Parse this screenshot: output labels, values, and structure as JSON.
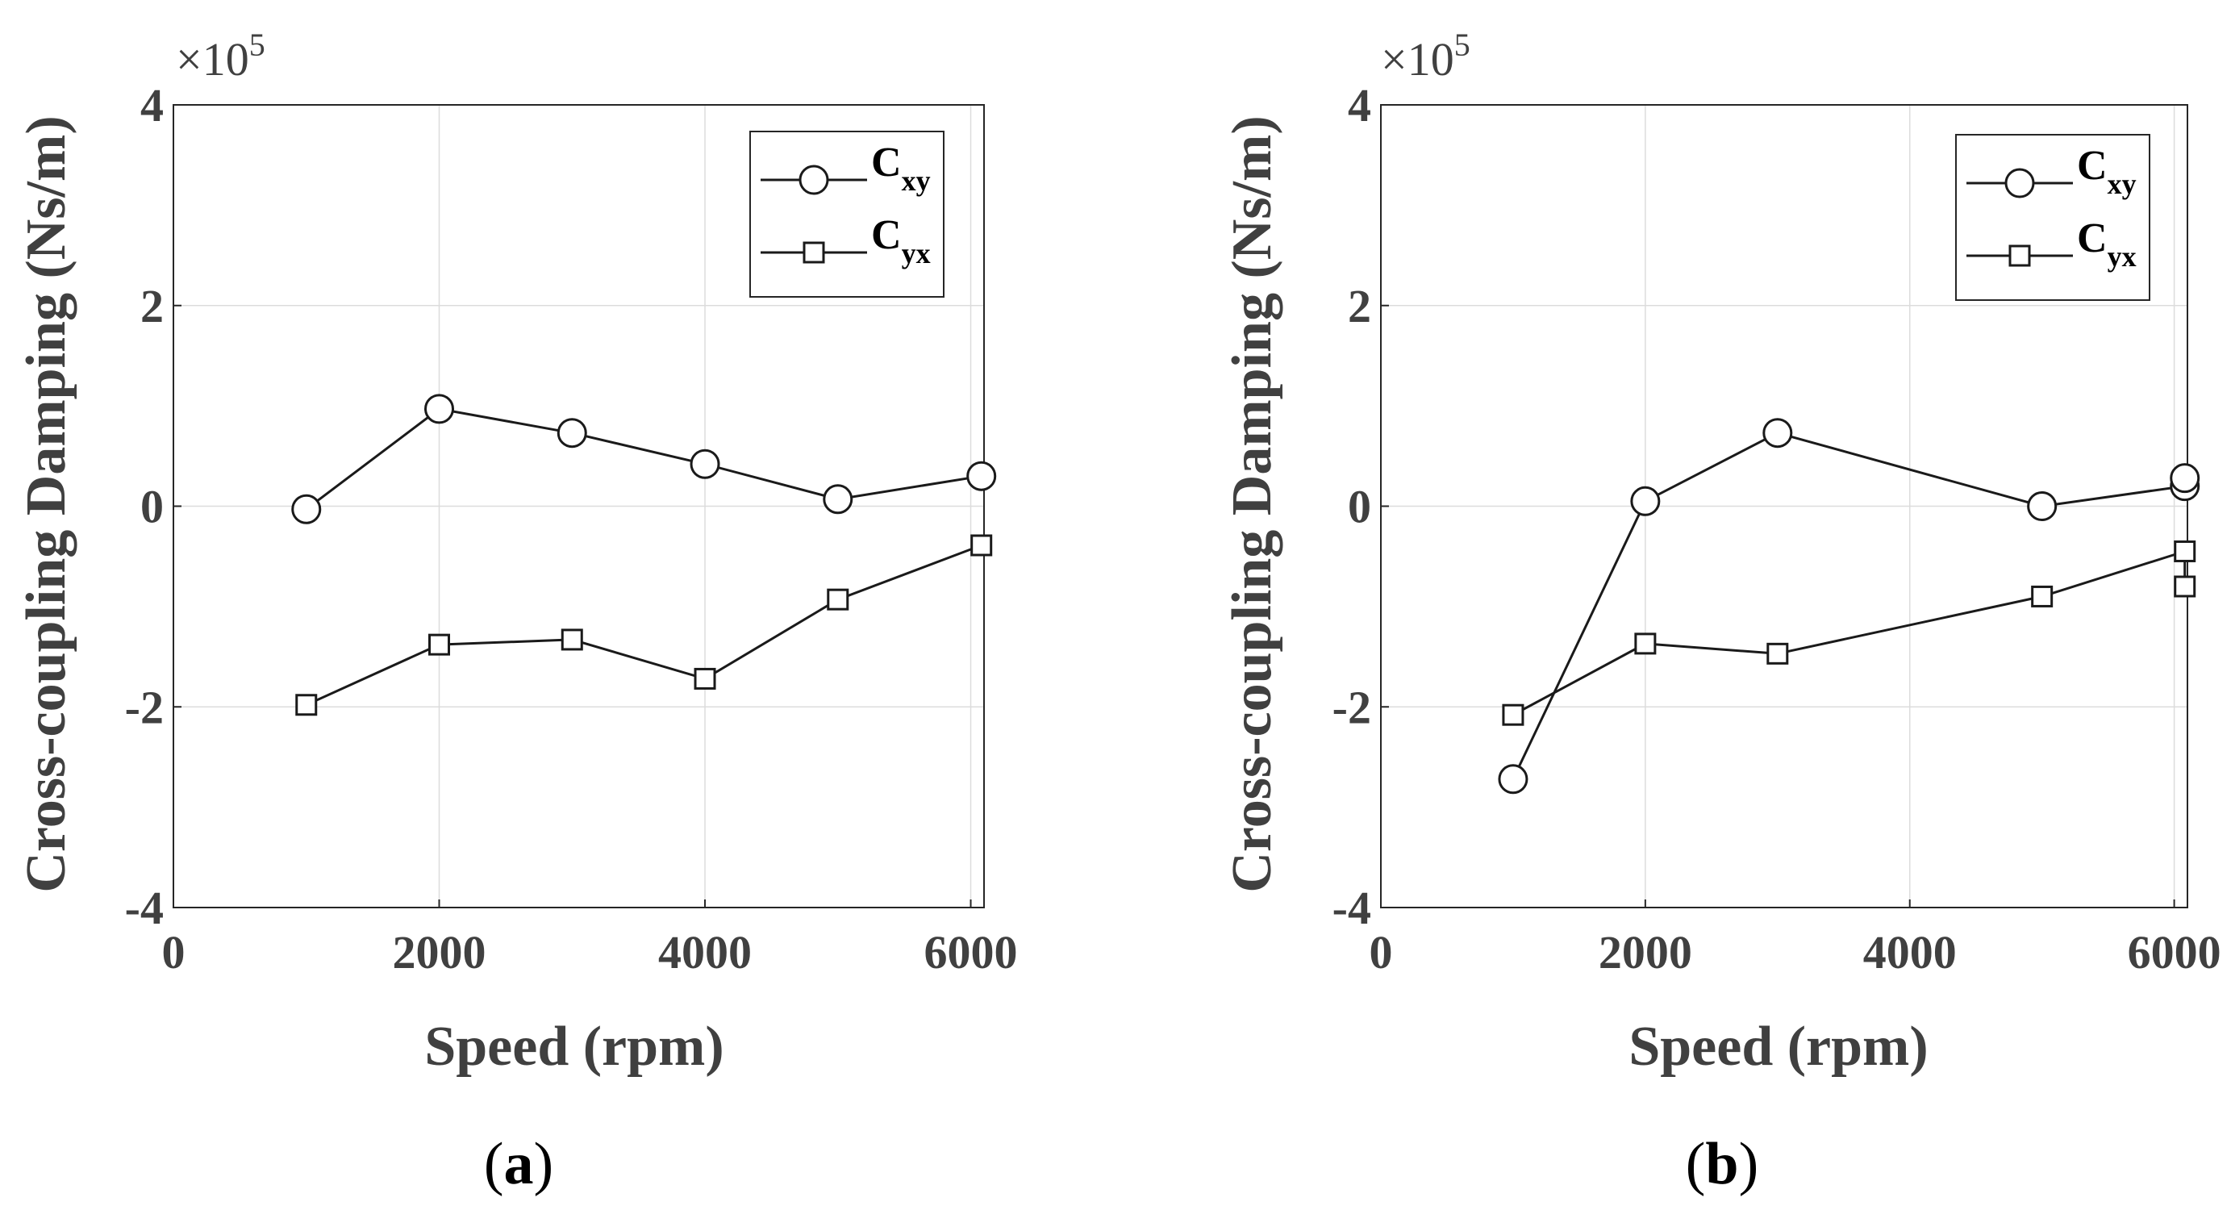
{
  "colors": {
    "line": "#1a1a1a",
    "axis": "#262626",
    "grid": "#dcdcdc",
    "text": "#404040"
  },
  "chart_data": [
    {
      "type": "line",
      "panel_label": "a",
      "xlabel": "Speed (rpm)",
      "ylabel": "Cross-coupling Damping (Ns/m)",
      "y_multiplier": {
        "base": "×10",
        "exponent": "5"
      },
      "xlim": [
        0,
        6100
      ],
      "ylim": [
        -4,
        4
      ],
      "xticks": [
        0,
        2000,
        4000,
        6000
      ],
      "yticks": [
        -4,
        -2,
        0,
        2,
        4
      ],
      "xtick_labels": [
        "0",
        "2000",
        "4000",
        "6000"
      ],
      "ytick_labels": [
        "-4",
        "-2",
        "0",
        "2",
        "4"
      ],
      "grid": true,
      "legend_position": "top-right",
      "series": [
        {
          "name": "C",
          "subscript": "xy",
          "marker": "circle",
          "x": [
            1000,
            2000,
            3000,
            4000,
            5000,
            6080
          ],
          "y": [
            -0.03,
            0.97,
            0.73,
            0.42,
            0.07,
            0.3
          ]
        },
        {
          "name": "C",
          "subscript": "yx",
          "marker": "square",
          "x": [
            1000,
            2000,
            3000,
            4000,
            5000,
            6080
          ],
          "y": [
            -1.98,
            -1.38,
            -1.33,
            -1.72,
            -0.93,
            -0.39
          ]
        }
      ]
    },
    {
      "type": "line",
      "panel_label": "b",
      "xlabel": "Speed (rpm)",
      "ylabel": "Cross-coupling Damping (Ns/m)",
      "y_multiplier": {
        "base": "×10",
        "exponent": "5"
      },
      "xlim": [
        0,
        6100
      ],
      "ylim": [
        -4,
        4
      ],
      "xticks": [
        0,
        2000,
        4000,
        6000
      ],
      "yticks": [
        -4,
        -2,
        0,
        2,
        4
      ],
      "xtick_labels": [
        "0",
        "2000",
        "4000",
        "6000"
      ],
      "ytick_labels": [
        "-4",
        "-2",
        "0",
        "2",
        "4"
      ],
      "grid": true,
      "legend_position": "top-right",
      "series": [
        {
          "name": "C",
          "subscript": "xy",
          "marker": "circle",
          "x": [
            1000,
            2000,
            3000,
            5000,
            6080,
            6080
          ],
          "y": [
            -2.72,
            0.05,
            0.73,
            0.0,
            0.2,
            0.28
          ]
        },
        {
          "name": "C",
          "subscript": "yx",
          "marker": "square",
          "x": [
            1000,
            2000,
            3000,
            5000,
            6080,
            6080
          ],
          "y": [
            -2.08,
            -1.37,
            -1.47,
            -0.9,
            -0.45,
            -0.8
          ]
        }
      ]
    }
  ],
  "captions": [
    {
      "open": "(",
      "letter": "a",
      "close": ")"
    },
    {
      "open": "(",
      "letter": "b",
      "close": ")"
    }
  ]
}
